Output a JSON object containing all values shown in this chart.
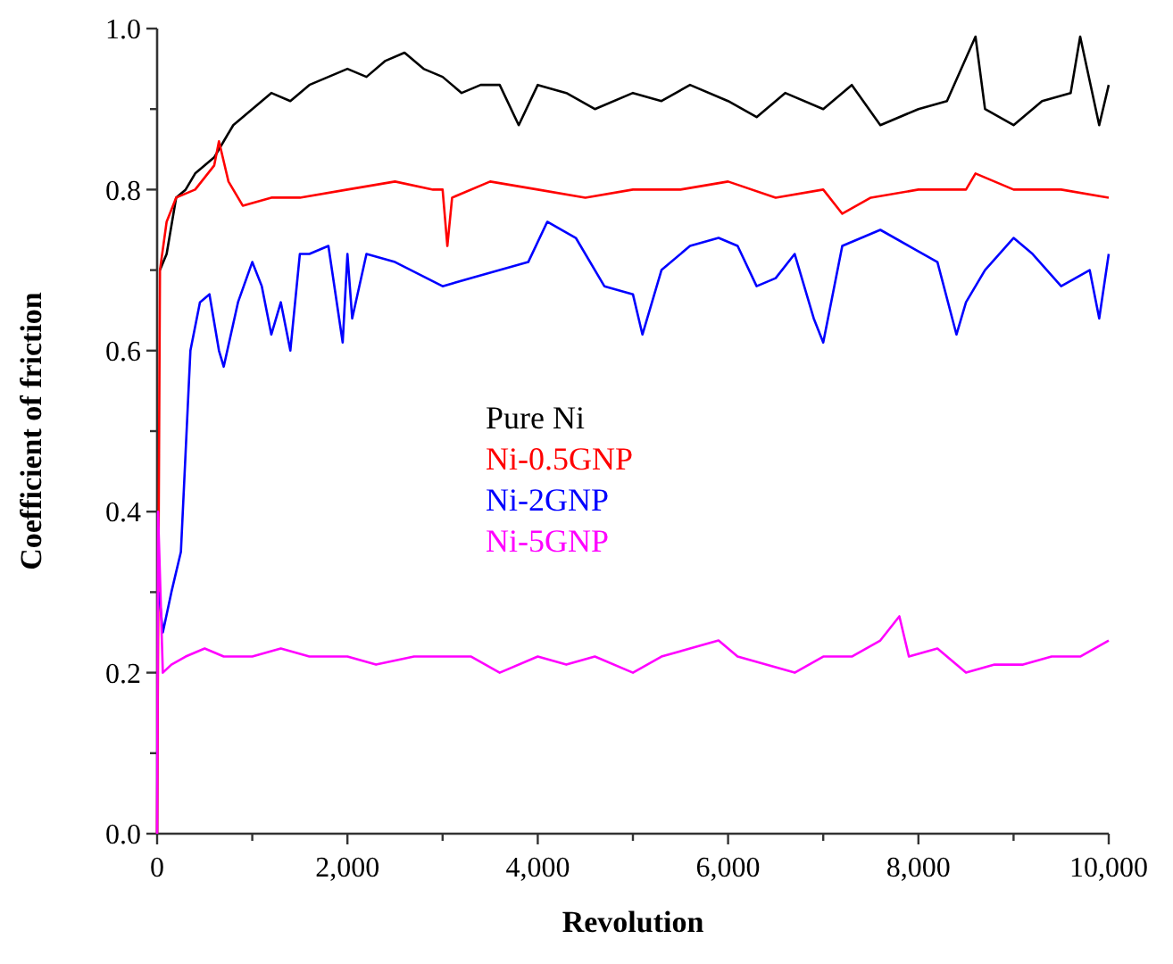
{
  "chart_data": {
    "type": "line",
    "xlabel": "Revolution",
    "ylabel": "Coefficient of friction",
    "xlim": [
      0,
      10000
    ],
    "ylim": [
      0,
      1
    ],
    "xticks": [
      0,
      {
        "value": 1000,
        "label": null
      },
      {
        "value": 2000,
        "label": "2,000"
      },
      {
        "value": 3000,
        "label": null
      },
      {
        "value": 4000,
        "label": "4,000"
      },
      {
        "value": 5000,
        "label": null
      },
      {
        "value": 6000,
        "label": "6,000"
      },
      {
        "value": 7000,
        "label": null
      },
      {
        "value": 8000,
        "label": "8,000"
      },
      {
        "value": 9000,
        "label": null
      },
      {
        "value": 10000,
        "label": "10,000"
      }
    ],
    "yticks": [
      {
        "value": 0,
        "label": "0.0"
      },
      {
        "value": 0.1,
        "label": null
      },
      0.2,
      {
        "value": 0.3,
        "label": null
      },
      0.4,
      {
        "value": 0.5,
        "label": null
      },
      0.6,
      {
        "value": 0.7,
        "label": null
      },
      0.8,
      {
        "value": 0.9,
        "label": null
      },
      {
        "value": 1,
        "label": "1.0"
      }
    ],
    "legend": "center",
    "grid": false,
    "marker": "none",
    "line_style": "solid",
    "series": [
      {
        "name": "Pure Ni",
        "color": "#000000",
        "x": [
          30,
          100,
          200,
          300,
          400,
          500,
          600,
          700,
          800,
          900,
          1000,
          1200,
          1400,
          1600,
          1800,
          2000,
          2200,
          2400,
          2600,
          2800,
          3000,
          3200,
          3400,
          3600,
          3800,
          4000,
          4300,
          4600,
          5000,
          5300,
          5600,
          6000,
          6300,
          6600,
          7000,
          7300,
          7600,
          8000,
          8300,
          8600,
          8700,
          9000,
          9300,
          9600,
          9700,
          9900,
          10000
        ],
        "values": [
          0.7,
          0.72,
          0.79,
          0.8,
          0.82,
          0.83,
          0.84,
          0.86,
          0.88,
          0.89,
          0.9,
          0.92,
          0.91,
          0.93,
          0.94,
          0.95,
          0.94,
          0.96,
          0.97,
          0.95,
          0.94,
          0.92,
          0.93,
          0.93,
          0.88,
          0.93,
          0.92,
          0.9,
          0.92,
          0.91,
          0.93,
          0.91,
          0.89,
          0.92,
          0.9,
          0.93,
          0.88,
          0.9,
          0.91,
          0.99,
          0.9,
          0.88,
          0.91,
          0.92,
          0.99,
          0.88,
          0.93
        ]
      },
      {
        "name": "Ni-0.5GNP",
        "color": "#ff0000",
        "x": [
          0,
          30,
          100,
          200,
          400,
          600,
          650,
          750,
          900,
          1200,
          1500,
          2000,
          2500,
          2900,
          3000,
          3050,
          3100,
          3500,
          4000,
          4500,
          5000,
          5500,
          6000,
          6500,
          7000,
          7200,
          7500,
          8000,
          8500,
          8600,
          9000,
          9500,
          10000
        ],
        "values": [
          0,
          0.7,
          0.76,
          0.79,
          0.8,
          0.83,
          0.86,
          0.81,
          0.78,
          0.79,
          0.79,
          0.8,
          0.81,
          0.8,
          0.8,
          0.73,
          0.79,
          0.81,
          0.8,
          0.79,
          0.8,
          0.8,
          0.81,
          0.79,
          0.8,
          0.77,
          0.79,
          0.8,
          0.8,
          0.82,
          0.8,
          0.8,
          0.79
        ]
      },
      {
        "name": "Ni-2GNP",
        "color": "#0000ff",
        "x": [
          20,
          60,
          150,
          250,
          350,
          450,
          550,
          650,
          700,
          850,
          1000,
          1100,
          1200,
          1300,
          1400,
          1500,
          1600,
          1800,
          1950,
          2000,
          2050,
          2200,
          2500,
          3000,
          3300,
          3600,
          3900,
          4100,
          4400,
          4700,
          5000,
          5100,
          5300,
          5600,
          5900,
          6100,
          6300,
          6500,
          6700,
          6900,
          7000,
          7200,
          7400,
          7600,
          7900,
          8200,
          8400,
          8500,
          8700,
          9000,
          9200,
          9500,
          9800,
          9900,
          10000
        ],
        "values": [
          0.3,
          0.25,
          0.3,
          0.35,
          0.6,
          0.66,
          0.67,
          0.6,
          0.58,
          0.66,
          0.71,
          0.68,
          0.62,
          0.66,
          0.6,
          0.72,
          0.72,
          0.73,
          0.61,
          0.72,
          0.64,
          0.72,
          0.71,
          0.68,
          0.69,
          0.7,
          0.71,
          0.76,
          0.74,
          0.68,
          0.67,
          0.62,
          0.7,
          0.73,
          0.74,
          0.73,
          0.68,
          0.69,
          0.72,
          0.64,
          0.61,
          0.73,
          0.74,
          0.75,
          0.73,
          0.71,
          0.62,
          0.66,
          0.7,
          0.74,
          0.72,
          0.68,
          0.7,
          0.64,
          0.72
        ]
      },
      {
        "name": "Ni-5GNP",
        "color": "#ff00ff",
        "x": [
          0,
          10,
          60,
          150,
          300,
          500,
          700,
          1000,
          1300,
          1600,
          2000,
          2300,
          2700,
          3000,
          3300,
          3600,
          4000,
          4300,
          4600,
          5000,
          5300,
          5600,
          5900,
          6100,
          6400,
          6700,
          7000,
          7300,
          7600,
          7800,
          7900,
          8200,
          8500,
          8800,
          9100,
          9400,
          9700,
          10000
        ],
        "values": [
          0,
          0.4,
          0.2,
          0.21,
          0.22,
          0.23,
          0.22,
          0.22,
          0.23,
          0.22,
          0.22,
          0.21,
          0.22,
          0.22,
          0.22,
          0.2,
          0.22,
          0.21,
          0.22,
          0.2,
          0.22,
          0.23,
          0.24,
          0.22,
          0.21,
          0.2,
          0.22,
          0.22,
          0.24,
          0.27,
          0.22,
          0.23,
          0.2,
          0.21,
          0.21,
          0.22,
          0.22,
          0.24
        ]
      }
    ]
  }
}
